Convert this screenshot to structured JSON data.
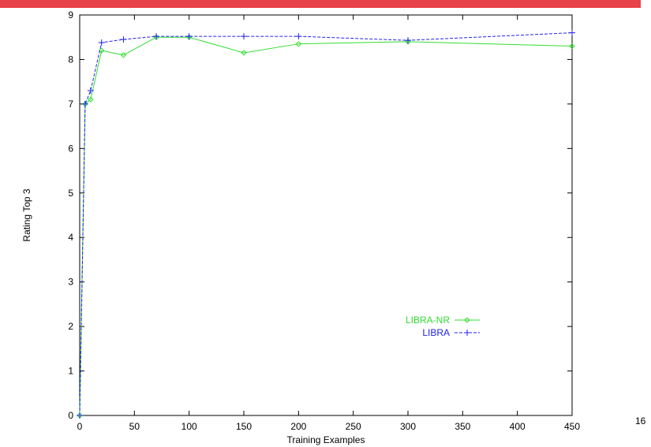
{
  "slide": {
    "page_number": "16",
    "accent_color": "#e8424a"
  },
  "chart_data": {
    "type": "line",
    "title": "",
    "xlabel": "Training Examples",
    "ylabel": "Rating Top 3",
    "xlim": [
      0,
      450
    ],
    "ylim": [
      0,
      9
    ],
    "xticks": [
      "0",
      "50",
      "100",
      "150",
      "200",
      "250",
      "300",
      "350",
      "400",
      "450"
    ],
    "yticks": [
      "0",
      "1",
      "2",
      "3",
      "4",
      "5",
      "6",
      "7",
      "8",
      "9"
    ],
    "grid": false,
    "legend_position": "lower-right",
    "series": [
      {
        "name": "LIBRA-NR",
        "color": "#33dd33",
        "marker": "diamond",
        "x": [
          0,
          5,
          10,
          20,
          40,
          70,
          100,
          150,
          200,
          300,
          450
        ],
        "y": [
          0,
          7.0,
          7.1,
          8.2,
          8.1,
          8.5,
          8.5,
          8.15,
          8.35,
          8.4,
          8.3
        ]
      },
      {
        "name": "LIBRA",
        "color": "#2222ee",
        "marker": "plus",
        "x": [
          0,
          5,
          10,
          20,
          40,
          70,
          100,
          150,
          200,
          300,
          450
        ],
        "y": [
          0,
          7.0,
          7.3,
          8.38,
          8.45,
          8.52,
          8.52,
          8.52,
          8.52,
          8.43,
          8.6
        ]
      }
    ]
  }
}
